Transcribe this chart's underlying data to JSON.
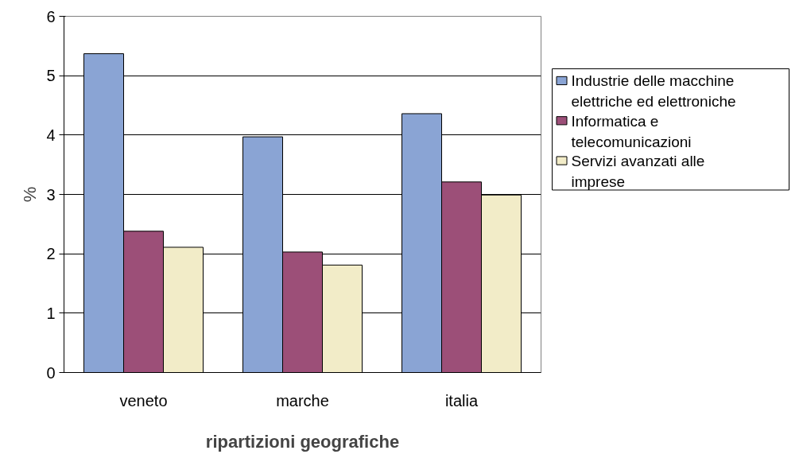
{
  "chart_data": {
    "type": "bar",
    "xlabel": "ripartizioni geografiche",
    "ylabel": "%",
    "categories": [
      "veneto",
      "marche",
      "italia"
    ],
    "series": [
      {
        "name": "Industrie delle macchine elettriche ed elettroniche",
        "color": "#8aa4d4",
        "values": [
          5.37,
          3.97,
          4.36
        ]
      },
      {
        "name": "Informatica e telecomunicazioni",
        "color": "#9c4f78",
        "values": [
          2.38,
          2.03,
          3.21
        ]
      },
      {
        "name": "Servizi avanzati alle imprese",
        "color": "#f2ecc8",
        "values": [
          2.11,
          1.81,
          2.99
        ]
      }
    ],
    "ylim": [
      0,
      6
    ],
    "yticks": [
      0,
      1,
      2,
      3,
      4,
      5,
      6
    ],
    "grid": "y",
    "legend": "right"
  }
}
